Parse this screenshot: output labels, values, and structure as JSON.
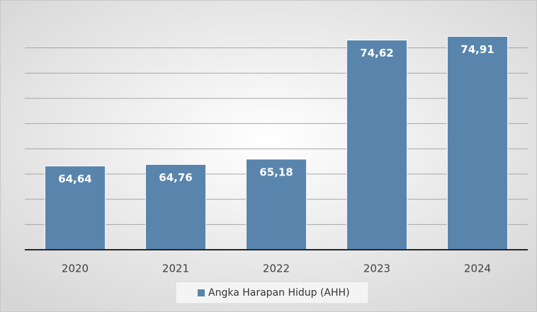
{
  "chart_data": {
    "type": "bar",
    "categories": [
      "2020",
      "2021",
      "2022",
      "2023",
      "2024"
    ],
    "values": [
      64.64,
      64.76,
      65.18,
      74.62,
      74.91
    ],
    "value_labels": [
      "64,64",
      "64,76",
      "65,18",
      "74,62",
      "74,91"
    ],
    "series_name": "Angka Harapan Hidup (AHH)",
    "color": "#5985ad",
    "ylim": [
      58,
      76
    ],
    "yticks": [
      60,
      62,
      64,
      66,
      68,
      70,
      72,
      74
    ],
    "grid": true
  }
}
